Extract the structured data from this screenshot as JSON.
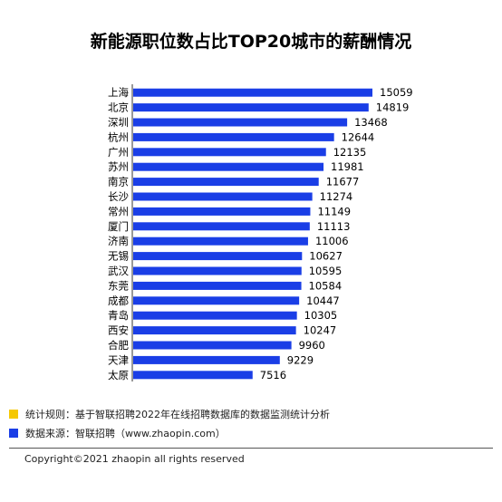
{
  "chart_data": {
    "type": "bar",
    "orientation": "horizontal",
    "title": "新能源职位数占比TOP20城市的薪酬情况",
    "categories": [
      "上海",
      "北京",
      "深圳",
      "杭州",
      "广州",
      "苏州",
      "南京",
      "长沙",
      "常州",
      "厦门",
      "济南",
      "无锡",
      "武汉",
      "东莞",
      "成都",
      "青岛",
      "西安",
      "合肥",
      "天津",
      "太原"
    ],
    "values": [
      15059,
      14819,
      13468,
      12644,
      12135,
      11981,
      11677,
      11274,
      11149,
      11113,
      11006,
      10627,
      10595,
      10584,
      10447,
      10305,
      10247,
      9960,
      9229,
      7516
    ],
    "bar_color": "#1a3ee6",
    "grid": false,
    "legend": "none"
  },
  "notes": [
    {
      "text": "统计规则：基于智联招聘2022年在线招聘数据库的数据监测统计分析",
      "color": "#f5c800"
    },
    {
      "text": "数据来源：智联招聘（www.zhaopin.com）",
      "color": "#1a3ee6"
    }
  ],
  "copyright": "Copyright©2021 zhaopin all rights reserved"
}
